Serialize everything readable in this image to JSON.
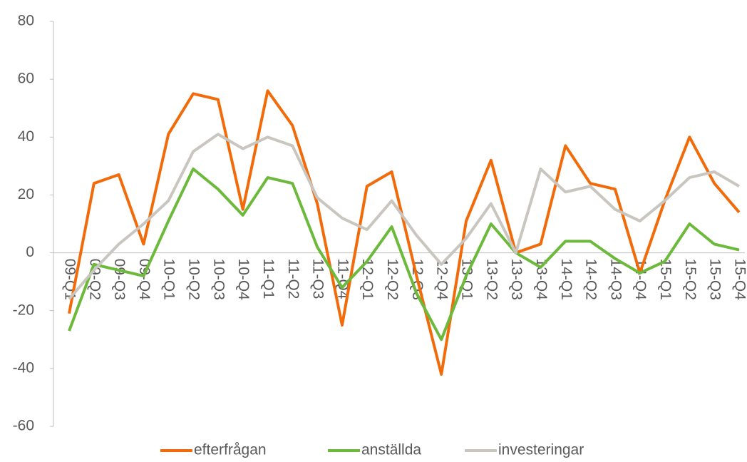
{
  "chart_data": {
    "type": "line",
    "categories": [
      "09-Q1",
      "09-Q2",
      "09-Q3",
      "09-Q4",
      "10-Q1",
      "10-Q2",
      "10-Q3",
      "10-Q4",
      "11-Q1",
      "11-Q2",
      "11-Q3",
      "11-Q4",
      "12-Q1",
      "12-Q2",
      "12-Q3",
      "12-Q4",
      "13-Q1",
      "13-Q2",
      "13-Q3",
      "13-Q4",
      "14-Q1",
      "14-Q2",
      "14-Q3",
      "14-Q4",
      "15-Q1",
      "15-Q2",
      "15-Q3",
      "15-Q4"
    ],
    "series": [
      {
        "name": "efterfrågan",
        "color": "#f26b0a",
        "values": [
          -21,
          24,
          27,
          3,
          41,
          55,
          53,
          15,
          56,
          44,
          17,
          -25,
          23,
          28,
          -8,
          -42,
          11,
          32,
          0,
          3,
          37,
          24,
          22,
          -7,
          18,
          40,
          24,
          14
        ]
      },
      {
        "name": "anställda",
        "color": "#6cb93b",
        "values": [
          -27,
          -4,
          -6,
          -8,
          11,
          29,
          22,
          13,
          26,
          24,
          2,
          -12,
          -3,
          9,
          -14,
          -30,
          -8,
          10,
          0,
          -5,
          4,
          4,
          -2,
          -7,
          -3,
          10,
          3,
          1
        ]
      },
      {
        "name": "investeringar",
        "color": "#c9c6bf",
        "values": [
          -16,
          -6,
          3,
          10,
          18,
          35,
          41,
          36,
          40,
          37,
          19,
          12,
          8,
          18,
          6,
          -4,
          5,
          17,
          0,
          29,
          21,
          23,
          15,
          11,
          18,
          26,
          28,
          23
        ]
      }
    ],
    "ylim": [
      -60,
      80
    ],
    "yticks": [
      -60,
      -40,
      -20,
      0,
      20,
      40,
      60,
      80
    ],
    "legend": "bottom"
  }
}
